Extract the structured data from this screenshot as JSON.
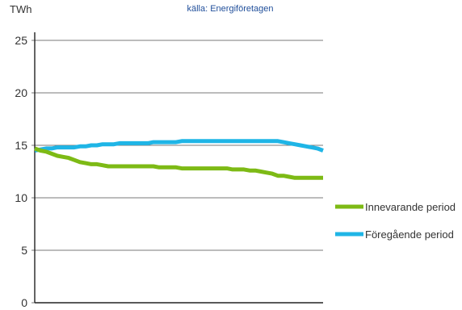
{
  "chart_data": {
    "type": "line",
    "ylabel": "TWh",
    "source": "källa: Energiföretagen",
    "ylim": [
      0,
      25
    ],
    "yticks": [
      "0",
      "5",
      "10",
      "15",
      "20",
      "25"
    ],
    "grid": true,
    "legend_position": "right",
    "x": [
      1,
      2,
      3,
      4,
      5,
      6,
      7,
      8,
      9,
      10,
      11,
      12,
      13,
      14,
      15,
      16,
      17,
      18,
      19,
      20,
      21,
      22,
      23,
      24,
      25,
      26,
      27,
      28,
      29,
      30,
      31,
      32,
      33,
      34,
      35,
      36,
      37,
      38,
      39,
      40,
      41,
      42,
      43,
      44,
      45,
      46,
      47,
      48,
      49,
      50,
      51,
      52
    ],
    "series": [
      {
        "name": "Innevarande period",
        "color": "#7dba15",
        "values": [
          14.7,
          14.5,
          14.4,
          14.2,
          14.0,
          13.9,
          13.8,
          13.6,
          13.4,
          13.3,
          13.2,
          13.2,
          13.1,
          13.0,
          13.0,
          13.0,
          13.0,
          13.0,
          13.0,
          13.0,
          13.0,
          13.0,
          12.9,
          12.9,
          12.9,
          12.9,
          12.8,
          12.8,
          12.8,
          12.8,
          12.8,
          12.8,
          12.8,
          12.8,
          12.8,
          12.7,
          12.7,
          12.7,
          12.6,
          12.6,
          12.5,
          12.4,
          12.3,
          12.1,
          12.1,
          12.0,
          11.9,
          11.9,
          11.9,
          11.9,
          11.9,
          11.9
        ]
      },
      {
        "name": "Föregående period",
        "color": "#1fb5e6",
        "values": [
          14.5,
          14.6,
          14.7,
          14.7,
          14.8,
          14.8,
          14.8,
          14.8,
          14.9,
          14.9,
          15.0,
          15.0,
          15.1,
          15.1,
          15.1,
          15.2,
          15.2,
          15.2,
          15.2,
          15.2,
          15.2,
          15.3,
          15.3,
          15.3,
          15.3,
          15.3,
          15.4,
          15.4,
          15.4,
          15.4,
          15.4,
          15.4,
          15.4,
          15.4,
          15.4,
          15.4,
          15.4,
          15.4,
          15.4,
          15.4,
          15.4,
          15.4,
          15.4,
          15.4,
          15.3,
          15.2,
          15.1,
          15.0,
          14.9,
          14.8,
          14.7,
          14.5
        ]
      }
    ]
  }
}
